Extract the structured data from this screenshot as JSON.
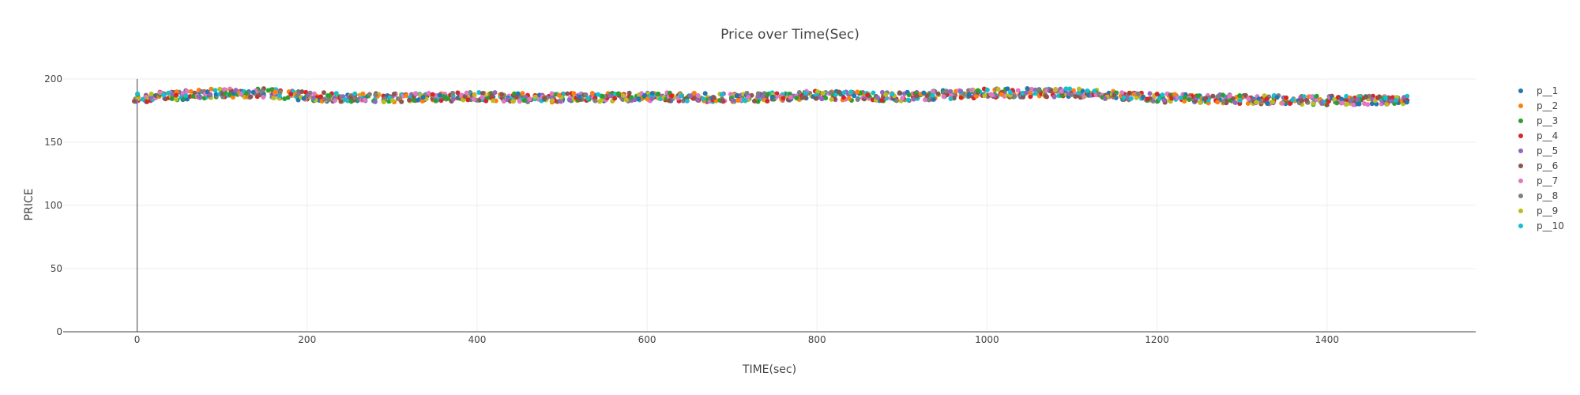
{
  "chart_data": {
    "type": "scatter",
    "title": "Price over Time(Sec)",
    "xlabel": "TIME(sec)",
    "ylabel": "PRICE",
    "xlim": [
      -87,
      1575
    ],
    "ylim": [
      0,
      200
    ],
    "x_ticks": [
      0,
      200,
      400,
      600,
      800,
      1000,
      1200,
      1400
    ],
    "y_ticks": [
      0,
      50,
      100,
      150,
      200
    ],
    "grid": true,
    "legend_position": "right",
    "sample_interval_sec": 10,
    "x_start": 0,
    "x_end": 1490,
    "price_profile": {
      "x": [
        0,
        100,
        150,
        200,
        300,
        400,
        500,
        600,
        700,
        800,
        900,
        1000,
        1100,
        1150,
        1200,
        1300,
        1400,
        1490
      ],
      "y": [
        185,
        189,
        189,
        186,
        185,
        186,
        185,
        186,
        185,
        187,
        186,
        189,
        189,
        187,
        185,
        184,
        183,
        183
      ]
    },
    "series": [
      {
        "name": "p__1",
        "color": "#1f77b4"
      },
      {
        "name": "p__2",
        "color": "#ff7f0e"
      },
      {
        "name": "p__3",
        "color": "#2ca02c"
      },
      {
        "name": "p__4",
        "color": "#d62728"
      },
      {
        "name": "p__5",
        "color": "#9467bd"
      },
      {
        "name": "p__6",
        "color": "#8c564b"
      },
      {
        "name": "p__7",
        "color": "#e377c2"
      },
      {
        "name": "p__8",
        "color": "#7f7f7f"
      },
      {
        "name": "p__9",
        "color": "#bcbd22"
      },
      {
        "name": "p__10",
        "color": "#17becf"
      }
    ]
  }
}
